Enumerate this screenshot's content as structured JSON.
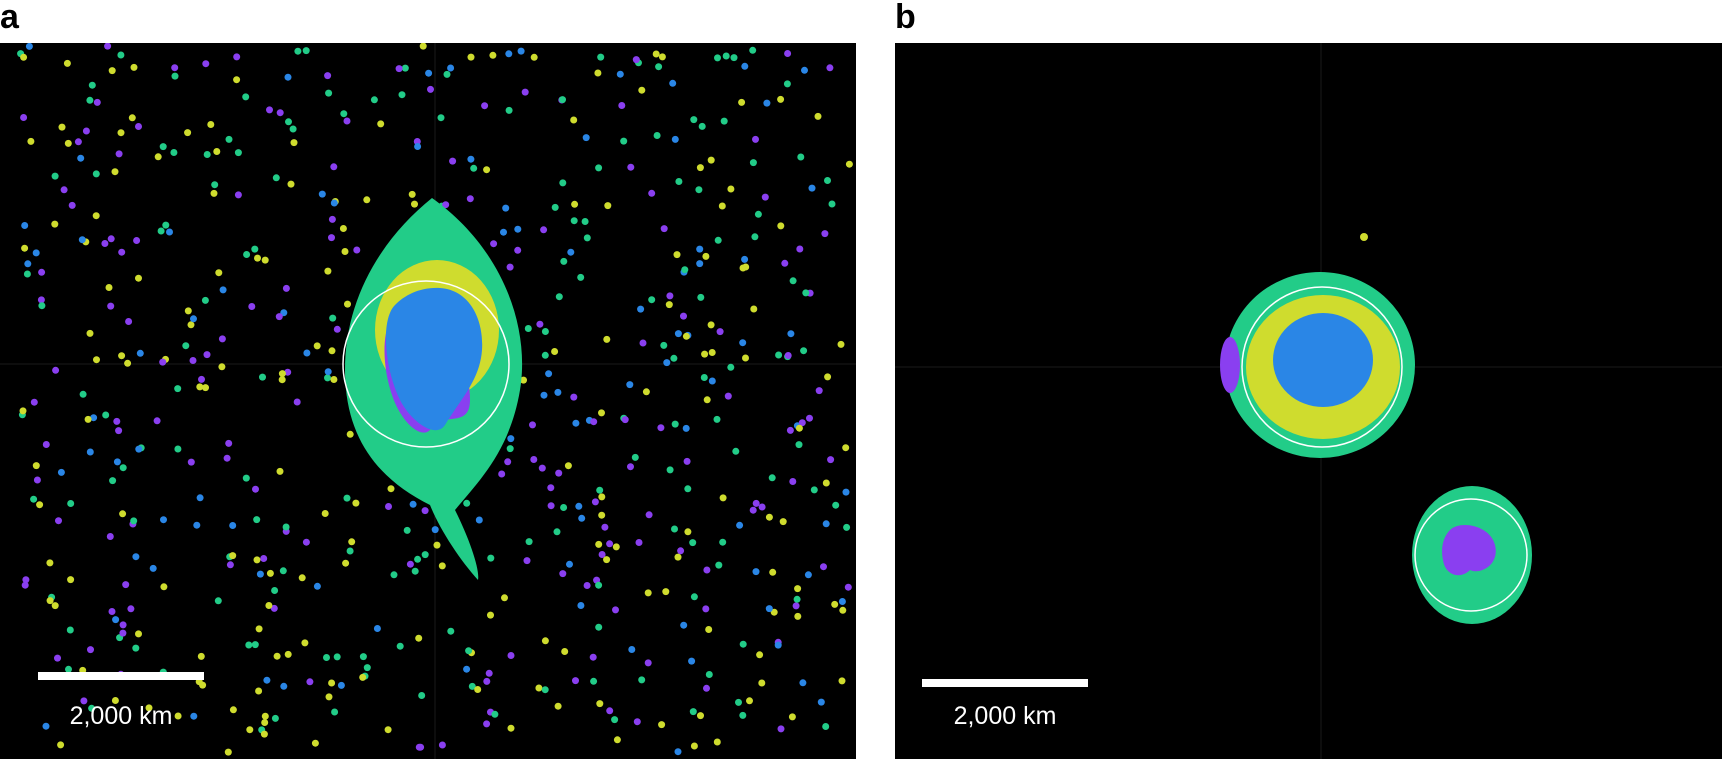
{
  "panels": [
    {
      "label": "a",
      "scale_bar": "2,000 km"
    },
    {
      "label": "b",
      "scale_bar": "2,000 km"
    }
  ]
}
